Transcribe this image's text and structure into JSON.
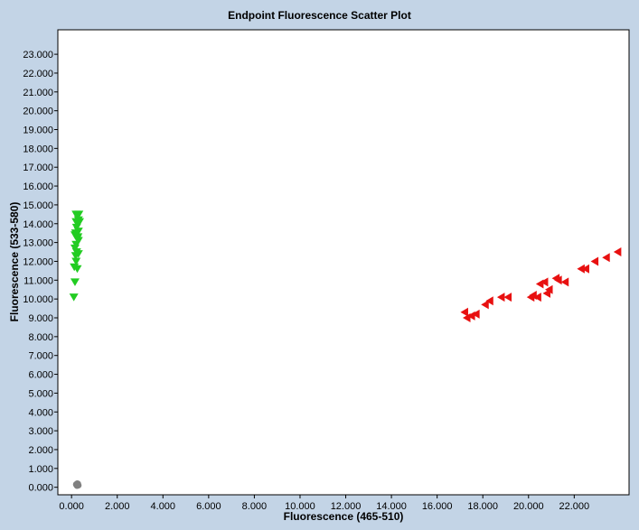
{
  "chart_data": {
    "type": "scatter",
    "title": "Endpoint Fluorescence Scatter Plot",
    "xlabel": "Fluorescence (465-510)",
    "ylabel": "Fluorescence (533-580)",
    "xlim": [
      -0.6,
      24.4
    ],
    "ylim": [
      -0.4,
      24.3
    ],
    "x_ticks": [
      0,
      2,
      4,
      6,
      8,
      10,
      12,
      14,
      16,
      18,
      20,
      22
    ],
    "x_tick_labels": [
      "0.000",
      "2.000",
      "4.000",
      "6.000",
      "8.000",
      "10.000",
      "12.000",
      "14.000",
      "16.000",
      "18.000",
      "20.000",
      "22.000"
    ],
    "y_ticks": [
      0,
      1,
      2,
      3,
      4,
      5,
      6,
      7,
      8,
      9,
      10,
      11,
      12,
      13,
      14,
      15,
      16,
      17,
      18,
      19,
      20,
      21,
      22,
      23
    ],
    "y_tick_labels": [
      "0.000",
      "1.000",
      "2.000",
      "3.000",
      "4.000",
      "5.000",
      "6.000",
      "7.000",
      "8.000",
      "9.000",
      "10.000",
      "11.000",
      "12.000",
      "13.000",
      "14.000",
      "15.000",
      "16.000",
      "17.000",
      "18.000",
      "19.000",
      "20.000",
      "21.000",
      "22.000",
      "23.000"
    ],
    "series": [
      {
        "marker": "triangle-down",
        "color": "#22cc22",
        "points": [
          [
            0.1,
            10.1
          ],
          [
            0.15,
            10.9
          ],
          [
            0.12,
            11.7
          ],
          [
            0.2,
            12.0
          ],
          [
            0.25,
            11.6
          ],
          [
            0.18,
            12.3
          ],
          [
            0.22,
            12.5
          ],
          [
            0.3,
            12.4
          ],
          [
            0.15,
            12.7
          ],
          [
            0.2,
            12.9
          ],
          [
            0.3,
            13.1
          ],
          [
            0.25,
            13.2
          ],
          [
            0.28,
            13.3
          ],
          [
            0.18,
            13.5
          ],
          [
            0.3,
            13.6
          ],
          [
            0.22,
            13.8
          ],
          [
            0.2,
            14.1
          ],
          [
            0.3,
            14.2
          ],
          [
            0.25,
            14.4
          ],
          [
            0.32,
            14.5
          ],
          [
            0.2,
            14.5
          ],
          [
            0.28,
            14.0
          ],
          [
            0.35,
            14.1
          ],
          [
            0.15,
            13.4
          ]
        ]
      },
      {
        "marker": "triangle-left",
        "color": "#e81010",
        "points": [
          [
            17.2,
            9.3
          ],
          [
            17.3,
            9.0
          ],
          [
            17.5,
            9.1
          ],
          [
            17.7,
            9.2
          ],
          [
            18.1,
            9.7
          ],
          [
            18.3,
            9.9
          ],
          [
            18.8,
            10.1
          ],
          [
            19.1,
            10.1
          ],
          [
            20.1,
            10.1
          ],
          [
            20.2,
            10.2
          ],
          [
            20.4,
            10.1
          ],
          [
            20.5,
            10.8
          ],
          [
            20.7,
            10.9
          ],
          [
            20.8,
            10.3
          ],
          [
            20.9,
            10.5
          ],
          [
            21.2,
            11.1
          ],
          [
            21.3,
            11.0
          ],
          [
            21.6,
            10.9
          ],
          [
            22.3,
            11.6
          ],
          [
            22.5,
            11.6
          ],
          [
            22.9,
            12.0
          ],
          [
            23.4,
            12.2
          ],
          [
            23.9,
            12.5
          ]
        ]
      },
      {
        "marker": "circle",
        "color": "#808080",
        "points": [
          [
            0.2,
            0.15
          ],
          [
            0.25,
            0.2
          ],
          [
            0.3,
            0.1
          ],
          [
            0.22,
            0.12
          ],
          [
            0.28,
            0.18
          ],
          [
            0.24,
            0.08
          ]
        ]
      }
    ]
  }
}
